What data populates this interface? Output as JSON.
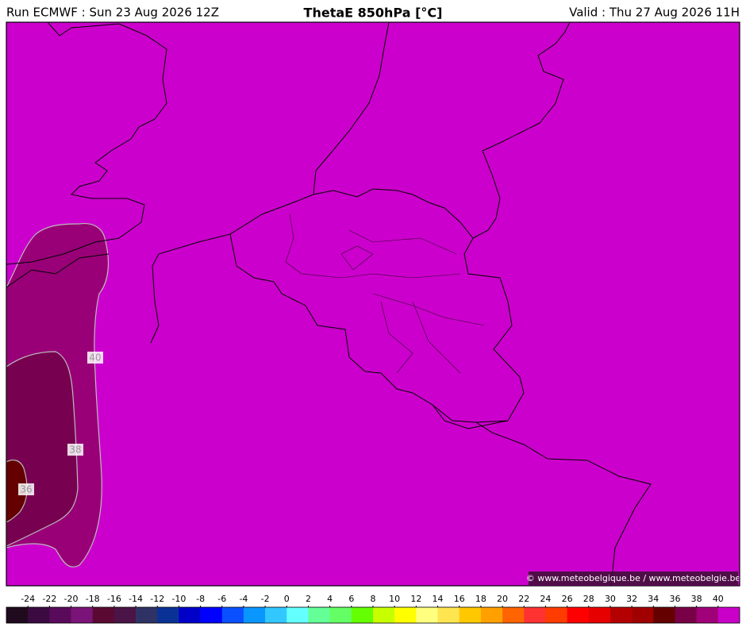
{
  "header": {
    "run": "Run ECMWF : Sun 23 Aug 2026 12Z",
    "title": "ThetaE 850hPa [°C]",
    "valid": "Valid : Thu 27 Aug 2026 11H"
  },
  "map": {
    "contour_labels": [
      40,
      38,
      36
    ],
    "credit": "© www.meteobelgique.be / www.meteobelgie.be"
  },
  "colorbar": {
    "labels": [
      -24,
      -22,
      -20,
      -18,
      -16,
      -14,
      -12,
      -10,
      -8,
      -6,
      -4,
      -2,
      0,
      2,
      4,
      6,
      8,
      10,
      12,
      14,
      16,
      18,
      20,
      22,
      24,
      26,
      28,
      30,
      32,
      34,
      36,
      38,
      40
    ],
    "colors": [
      "#200a1e",
      "#3a0a40",
      "#5a0a5a",
      "#7a1478",
      "#5a0a32",
      "#4a1446",
      "#2e3264",
      "#0a3296",
      "#0000c8",
      "#0000ff",
      "#0a50ff",
      "#0a96ff",
      "#32c8ff",
      "#64ffff",
      "#64ff96",
      "#64ff64",
      "#64ff00",
      "#c8ff00",
      "#ffff00",
      "#ffff80",
      "#ffe650",
      "#ffc800",
      "#ffa000",
      "#ff6400",
      "#ff3232",
      "#ff3c00",
      "#ff0000",
      "#e60000",
      "#b40000",
      "#a00000",
      "#640000",
      "#780046",
      "#a00078",
      "#c800c8"
    ]
  }
}
